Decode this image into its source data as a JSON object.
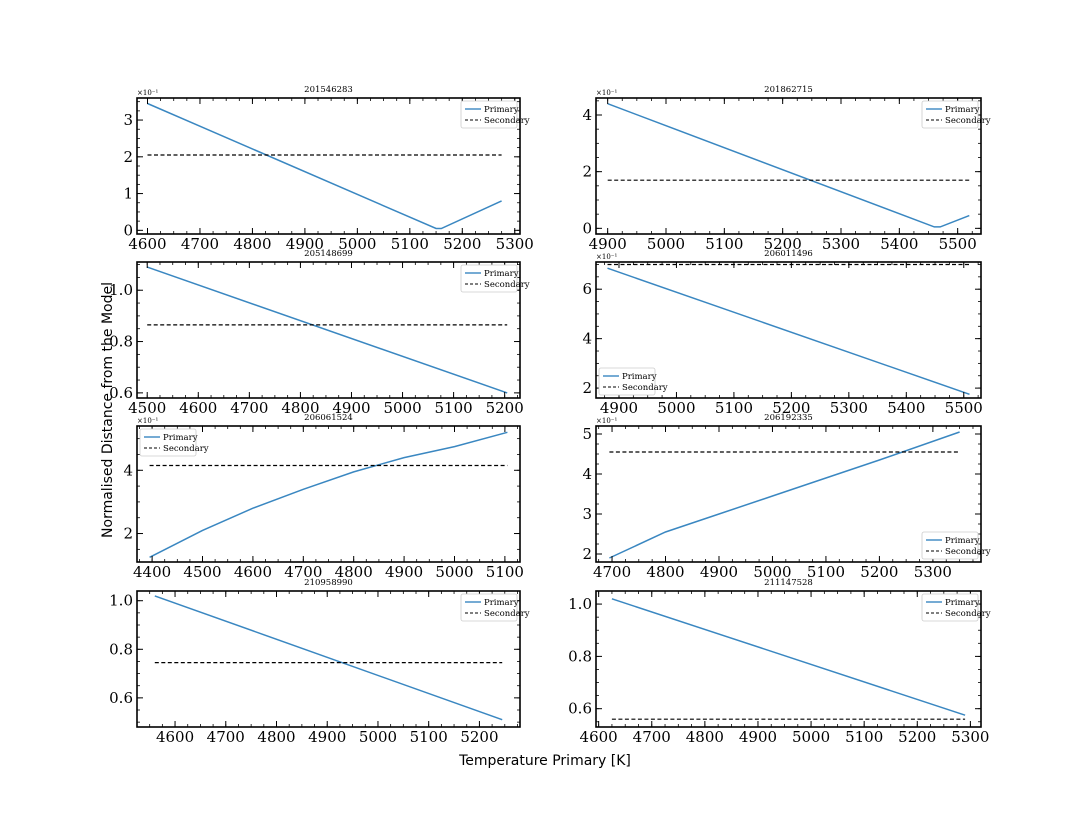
{
  "figure": {
    "ylabel": "Normalised Distance from the Model",
    "xlabel": "Temperature Primary [K]"
  },
  "colors": {
    "primary": "#3a87c1",
    "secondary": "#000000"
  },
  "chart_data": [
    {
      "type": "line",
      "title": "201546283",
      "multiplier": "×10⁻¹",
      "xlim": [
        4580,
        5310
      ],
      "ylim": [
        -0.1,
        3.6
      ],
      "xticks": [
        4600,
        4700,
        4800,
        4900,
        5000,
        5100,
        5200,
        5300
      ],
      "yticks": [
        0,
        1,
        2,
        3
      ],
      "legend": "top-right",
      "series": [
        {
          "name": "Primary",
          "style": "solid",
          "x": [
            4600,
            5150,
            5160,
            5275
          ],
          "y": [
            3.45,
            0.05,
            0.05,
            0.8
          ]
        },
        {
          "name": "Secondary",
          "style": "dashed",
          "x": [
            4600,
            5275
          ],
          "y": [
            2.05,
            2.05
          ]
        }
      ]
    },
    {
      "type": "line",
      "title": "201862715",
      "multiplier": "×10⁻¹",
      "xlim": [
        4880,
        5540
      ],
      "ylim": [
        -0.2,
        4.6
      ],
      "xticks": [
        4900,
        5000,
        5100,
        5200,
        5300,
        5400,
        5500
      ],
      "yticks": [
        0,
        2,
        4
      ],
      "legend": "top-right",
      "series": [
        {
          "name": "Primary",
          "style": "solid",
          "x": [
            4900,
            5460,
            5470,
            5520
          ],
          "y": [
            4.4,
            0.05,
            0.05,
            0.45
          ]
        },
        {
          "name": "Secondary",
          "style": "dashed",
          "x": [
            4900,
            5520
          ],
          "y": [
            1.7,
            1.7
          ]
        }
      ]
    },
    {
      "type": "line",
      "title": "205148699",
      "multiplier": "",
      "xlim": [
        4480,
        5230
      ],
      "ylim": [
        0.58,
        1.11
      ],
      "xticks": [
        4500,
        4600,
        4700,
        4800,
        4900,
        5000,
        5100,
        5200
      ],
      "yticks": [
        0.6,
        0.8,
        1.0
      ],
      "ytick_labels": [
        "0.6",
        "0.8",
        "1.0"
      ],
      "legend": "top-right",
      "series": [
        {
          "name": "Primary",
          "style": "solid",
          "x": [
            4500,
            5205
          ],
          "y": [
            1.09,
            0.6
          ]
        },
        {
          "name": "Secondary",
          "style": "dashed",
          "x": [
            4500,
            5205
          ],
          "y": [
            0.865,
            0.865
          ]
        }
      ]
    },
    {
      "type": "line",
      "title": "206011496",
      "multiplier": "×10⁻¹",
      "xlim": [
        4860,
        5530
      ],
      "ylim": [
        1.6,
        7.1
      ],
      "xticks": [
        4900,
        5000,
        5100,
        5200,
        5300,
        5400,
        5500
      ],
      "yticks": [
        2,
        4,
        6
      ],
      "legend": "bottom-left",
      "series": [
        {
          "name": "Primary",
          "style": "solid",
          "x": [
            4880,
            5510
          ],
          "y": [
            6.85,
            1.75
          ]
        },
        {
          "name": "Secondary",
          "style": "dashed",
          "x": [
            4880,
            5510
          ],
          "y": [
            7.0,
            7.0
          ]
        }
      ]
    },
    {
      "type": "line",
      "title": "206061524",
      "multiplier": "×10⁻¹",
      "xlim": [
        4370,
        5130
      ],
      "ylim": [
        1.1,
        5.4
      ],
      "xticks": [
        4400,
        4500,
        4600,
        4700,
        4800,
        4900,
        5000,
        5100
      ],
      "yticks": [
        2,
        4
      ],
      "legend": "top-left",
      "series": [
        {
          "name": "Primary",
          "style": "solid",
          "x": [
            4395,
            4500,
            4600,
            4700,
            4800,
            4900,
            5000,
            5105
          ],
          "y": [
            1.25,
            2.1,
            2.8,
            3.4,
            3.95,
            4.4,
            4.75,
            5.2
          ]
        },
        {
          "name": "Secondary",
          "style": "dashed",
          "x": [
            4395,
            5105
          ],
          "y": [
            4.15,
            4.15
          ]
        }
      ]
    },
    {
      "type": "line",
      "title": "206192335",
      "multiplier": "×10⁻¹",
      "xlim": [
        4670,
        5390
      ],
      "ylim": [
        1.8,
        5.2
      ],
      "xticks": [
        4700,
        4800,
        4900,
        5000,
        5100,
        5200,
        5300
      ],
      "yticks": [
        2,
        3,
        4,
        5
      ],
      "legend": "bottom-right",
      "series": [
        {
          "name": "Primary",
          "style": "solid",
          "x": [
            4695,
            4800,
            4900,
            5000,
            5100,
            5200,
            5350
          ],
          "y": [
            1.9,
            2.55,
            3.0,
            3.45,
            3.9,
            4.35,
            5.05
          ]
        },
        {
          "name": "Secondary",
          "style": "dashed",
          "x": [
            4695,
            5350
          ],
          "y": [
            4.55,
            4.55
          ]
        }
      ]
    },
    {
      "type": "line",
      "title": "210958990",
      "multiplier": "",
      "xlim": [
        4525,
        5280
      ],
      "ylim": [
        0.48,
        1.04
      ],
      "xticks": [
        4600,
        4700,
        4800,
        4900,
        5000,
        5100,
        5200
      ],
      "yticks": [
        0.6,
        0.8,
        1.0
      ],
      "ytick_labels": [
        "0.6",
        "0.8",
        "1.0"
      ],
      "legend": "top-right",
      "series": [
        {
          "name": "Primary",
          "style": "solid",
          "x": [
            4560,
            5245
          ],
          "y": [
            1.02,
            0.51
          ]
        },
        {
          "name": "Secondary",
          "style": "dashed",
          "x": [
            4560,
            5245
          ],
          "y": [
            0.745,
            0.745
          ]
        }
      ]
    },
    {
      "type": "line",
      "title": "211147528",
      "multiplier": "",
      "xlim": [
        4595,
        5320
      ],
      "ylim": [
        0.53,
        1.05
      ],
      "xticks": [
        4600,
        4700,
        4800,
        4900,
        5000,
        5100,
        5200,
        5300
      ],
      "yticks": [
        0.6,
        0.8,
        1.0
      ],
      "ytick_labels": [
        "0.6",
        "0.8",
        "1.0"
      ],
      "legend": "top-right",
      "series": [
        {
          "name": "Primary",
          "style": "solid",
          "x": [
            4625,
            5290
          ],
          "y": [
            1.02,
            0.575
          ]
        },
        {
          "name": "Secondary",
          "style": "dashed",
          "x": [
            4625,
            5290
          ],
          "y": [
            0.56,
            0.56
          ]
        }
      ]
    }
  ]
}
